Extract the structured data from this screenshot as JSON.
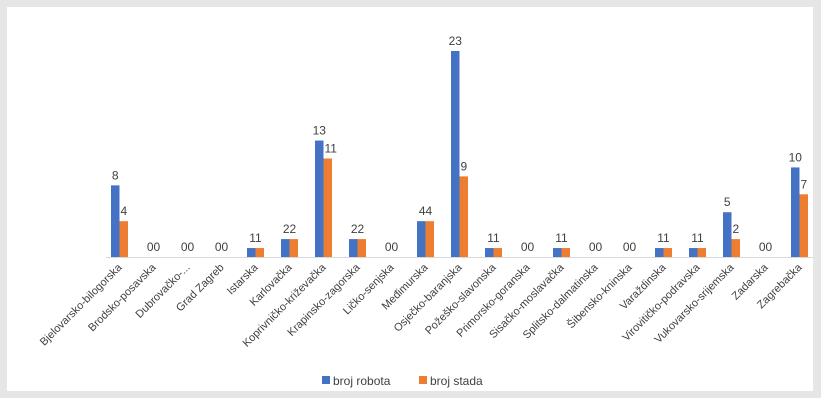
{
  "chart_data": {
    "type": "bar",
    "title": "",
    "xlabel": "",
    "ylabel": "",
    "ylim": [
      0,
      23
    ],
    "grid": false,
    "legend_position": "bottom",
    "categories": [
      "Bjelovarsko-bilogorska",
      "Brodsko-posavska",
      "Dubrovačko-...",
      "Grad Zagreb",
      "Istarska",
      "Karlovačka",
      "Koprivničko-križevačka",
      "Krapinsko-zagorska",
      "Ličko-senjska",
      "Međimurska",
      "Osječko-baranjska",
      "Požeško-slavonska",
      "Primorsko-goranska",
      "Sisačko-moslavačka",
      "Splitsko-dalmatinska",
      "Šibensko-kninska",
      "Varaždinska",
      "Virovitičko-podravska",
      "Vukovarsko-srijemska",
      "Zadarska",
      "Zagrebačka"
    ],
    "series": [
      {
        "name": "broj robota",
        "color": "#4472c4",
        "values": [
          8,
          0,
          0,
          0,
          1,
          2,
          13,
          2,
          0,
          4,
          23,
          1,
          0,
          1,
          0,
          0,
          1,
          1,
          5,
          0,
          10
        ]
      },
      {
        "name": "broj stada",
        "color": "#ed7d31",
        "values": [
          4,
          0,
          0,
          0,
          1,
          2,
          11,
          2,
          0,
          4,
          9,
          1,
          0,
          1,
          0,
          0,
          1,
          1,
          2,
          0,
          7
        ]
      }
    ]
  }
}
